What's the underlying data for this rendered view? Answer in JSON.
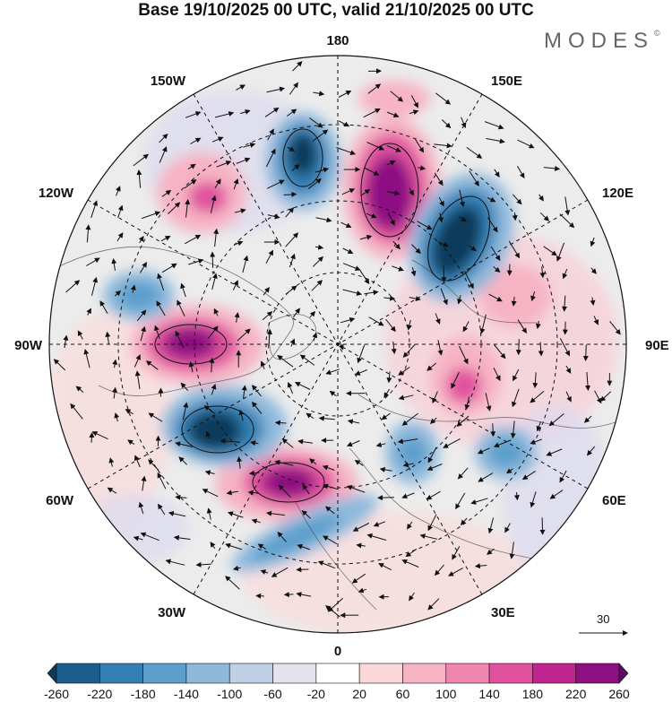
{
  "title": "Base 19/10/2025 00 UTC, valid 21/10/2025 00 UTC",
  "logo": {
    "text": "MODES",
    "mark": "©"
  },
  "projection": "polar-stereographic-north",
  "longitude_labels": {
    "top": "180",
    "bottom": "0",
    "left": "90W",
    "right": "90E",
    "upper_left_1": "150W",
    "upper_left_2": "120W",
    "upper_right_1": "150E",
    "upper_right_2": "120E",
    "lower_left_1": "60W",
    "lower_left_2": "30W",
    "lower_right_1": "60E",
    "lower_right_2": "30E"
  },
  "reference_vector": {
    "label": "30"
  },
  "colorbar": {
    "ticks": [
      "-260",
      "-220",
      "-180",
      "-140",
      "-100",
      "-60",
      "-20",
      "20",
      "60",
      "100",
      "140",
      "180",
      "220",
      "260"
    ],
    "colors": [
      "#0d3a5c",
      "#1b5d8c",
      "#3380b5",
      "#5c9fcc",
      "#8fb9dc",
      "#bfcfe6",
      "#e3e3f0",
      "#ffffff",
      "#fbd8d8",
      "#f6b3c4",
      "#ee86b0",
      "#e0529e",
      "#c0248f",
      "#8e0f82",
      "#5c0b6b"
    ]
  },
  "colors": {
    "positive_max": "#8e0f82",
    "negative_max": "#0d3a5c",
    "land": "#f0f0f0"
  }
}
